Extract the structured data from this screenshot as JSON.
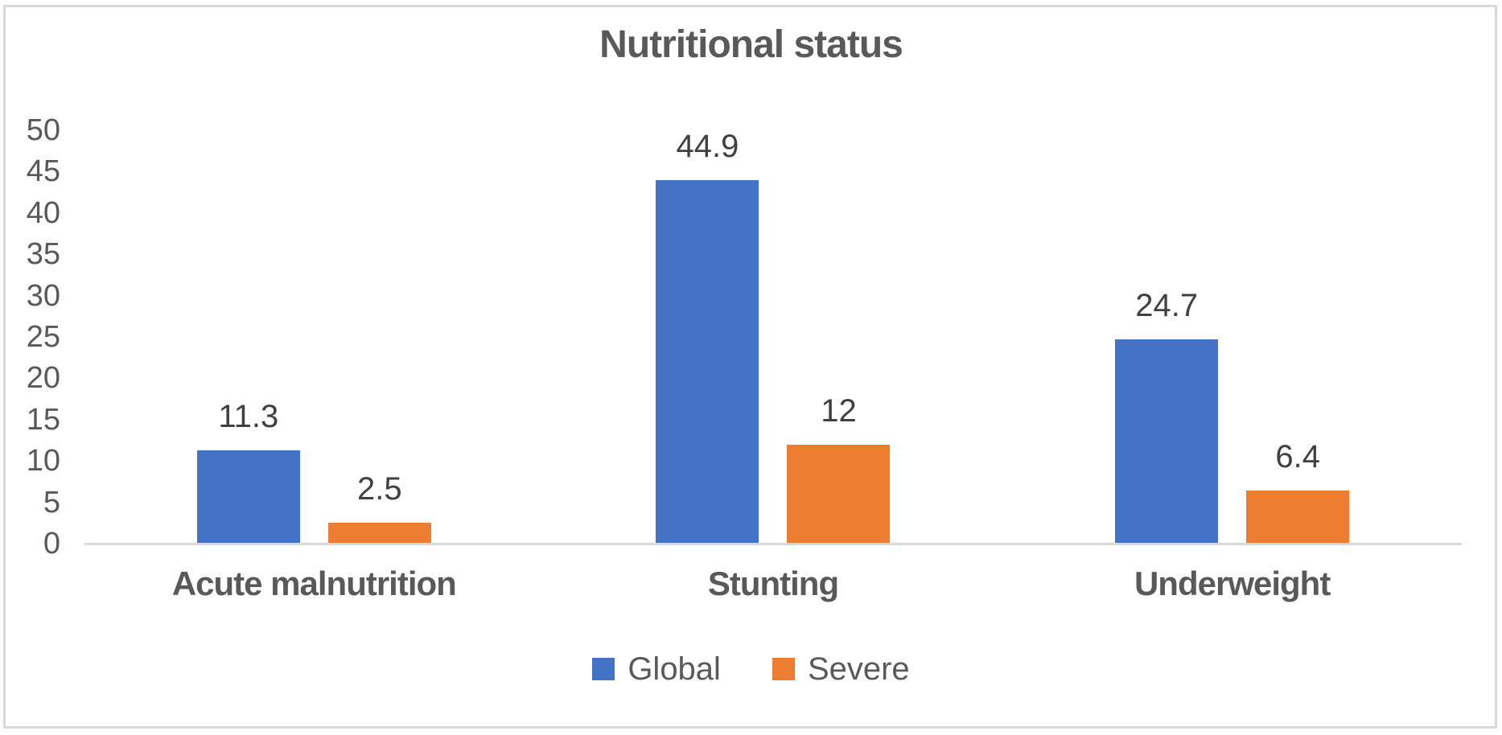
{
  "chart_data": {
    "type": "bar",
    "title": "Nutritional status",
    "categories": [
      "Acute malnutrition",
      "Stunting",
      "Underweight"
    ],
    "series": [
      {
        "name": "Global",
        "color": "#4472C4",
        "values": [
          11.3,
          44.9,
          24.7
        ],
        "labels": [
          "11.3",
          "44.9",
          "24.7"
        ]
      },
      {
        "name": "Severe",
        "color": "#ED7D31",
        "values": [
          2.5,
          12,
          6.4
        ],
        "labels": [
          "2.5",
          "12",
          "6.4"
        ]
      }
    ],
    "xlabel": "",
    "ylabel": "",
    "ylim": [
      0,
      50
    ],
    "yticks": [
      0,
      5,
      10,
      15,
      20,
      25,
      30,
      35,
      40,
      45,
      50
    ],
    "grid": false,
    "legend_position": "bottom",
    "colors": {
      "title_text": "#595959",
      "tick_text": "#595959",
      "data_label_text": "#404040",
      "category_text": "#595959",
      "legend_text": "#595959",
      "axis_line": "#D9D9D9",
      "frame_border": "#D9D9D9",
      "background": "#FFFFFF"
    }
  }
}
